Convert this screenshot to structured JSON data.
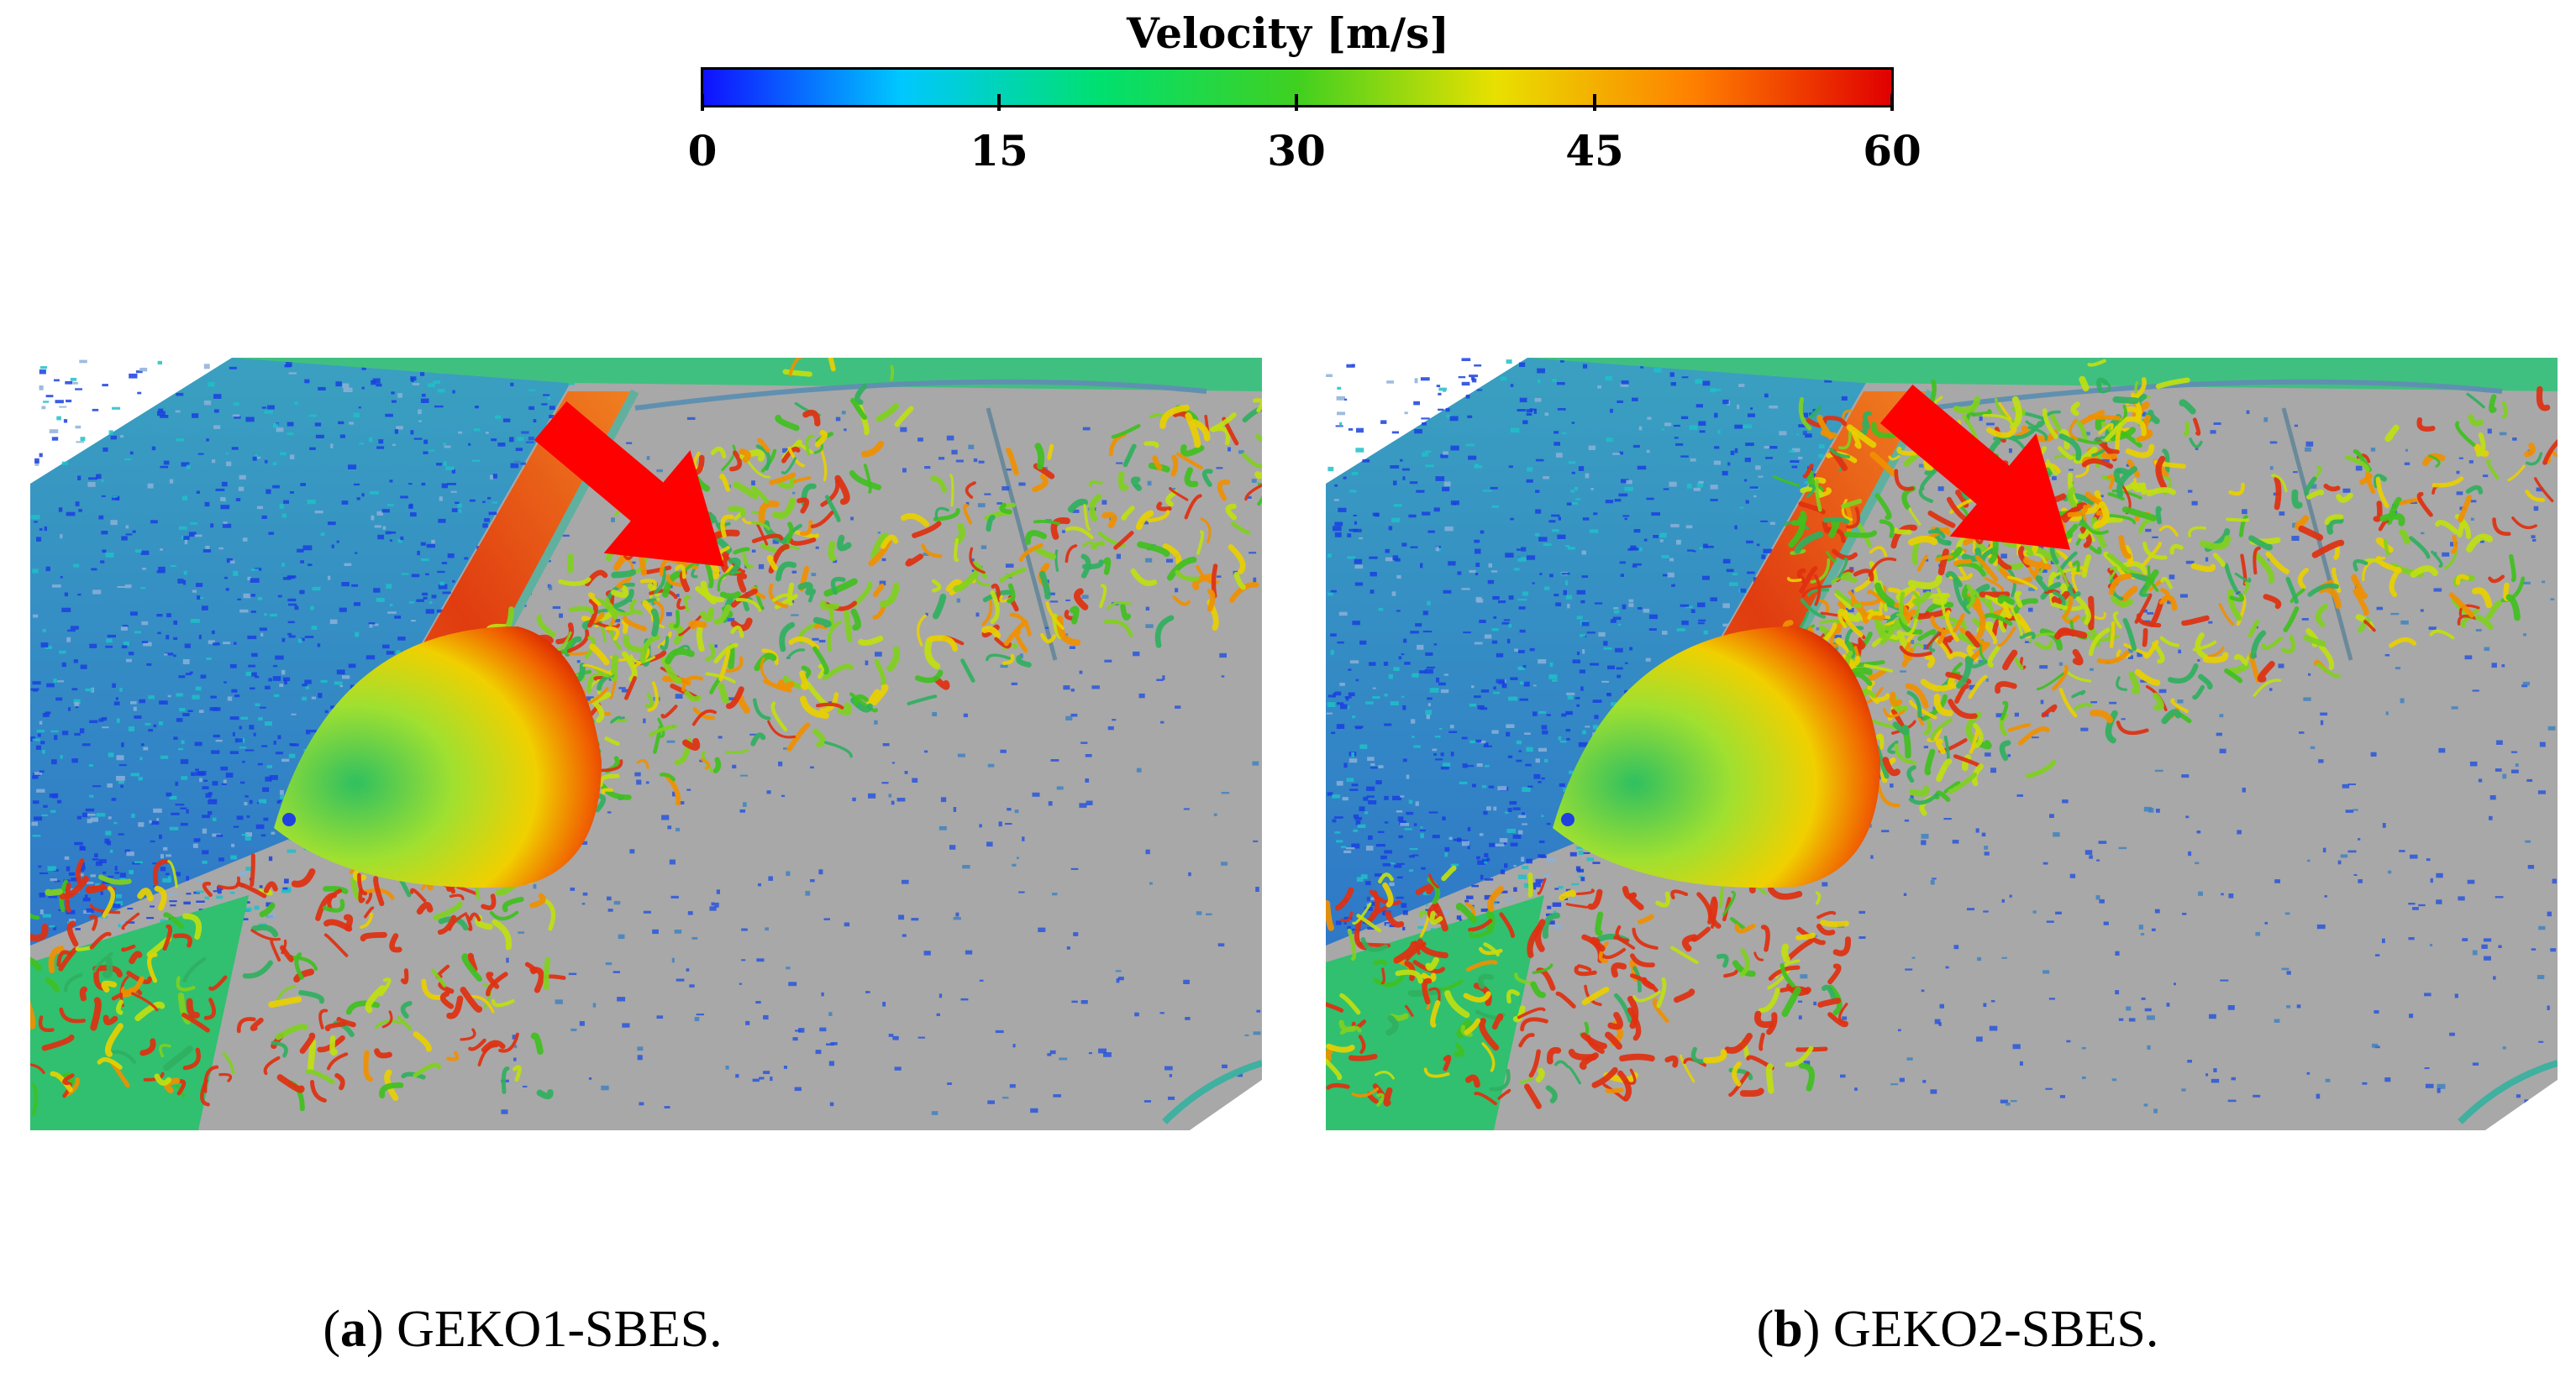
{
  "colorbar": {
    "title": "Velocity [m/s]",
    "min": 0,
    "max": 60,
    "ticks": [
      "0",
      "15",
      "30",
      "45",
      "60"
    ],
    "colors": [
      "#1010ff",
      "#00c8ff",
      "#00e070",
      "#40d020",
      "#e8e000",
      "#ff8000",
      "#e00000"
    ]
  },
  "panels": [
    {
      "caption_letter": "a",
      "caption_text": " GEKO1-SBES.",
      "arrow_color": "#ff0000"
    },
    {
      "caption_letter": "b",
      "caption_text": " GEKO2-SBES.",
      "arrow_color": "#ff0000"
    }
  ],
  "colors": {
    "surface_gray": "#a6a6a6",
    "pillar_red": "#e04010",
    "glass_blue": "#3c6cd8"
  }
}
